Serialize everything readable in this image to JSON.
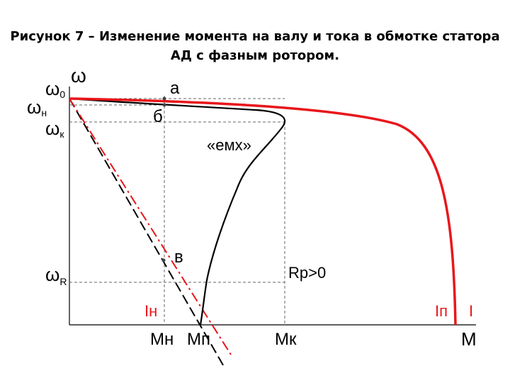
{
  "caption": {
    "line1": "Рисунок 7 – Изменение момента на валу и тока в обмотке статора",
    "line2": "АД с фазным ротором."
  },
  "axes": {
    "y_axis_label": "ω",
    "x_axis_label": "M",
    "y_ticks": [
      {
        "symbol": "ω",
        "sub": "0"
      },
      {
        "symbol": "ω",
        "sub": "н"
      },
      {
        "symbol": "ω",
        "sub": "к"
      },
      {
        "symbol": "ω",
        "sub": "R"
      }
    ],
    "x_ticks": [
      "Мн",
      "Мп",
      "Мк"
    ]
  },
  "points": [
    "а",
    "б",
    "в"
  ],
  "curve_labels": {
    "emf": "«емх»",
    "rp": "Rр>0",
    "i_n": "Iн",
    "i_p": "Iп",
    "i": "I"
  },
  "colors": {
    "black_curve": "#000000",
    "red_curve": "#e8161b",
    "guide": "#666666"
  }
}
